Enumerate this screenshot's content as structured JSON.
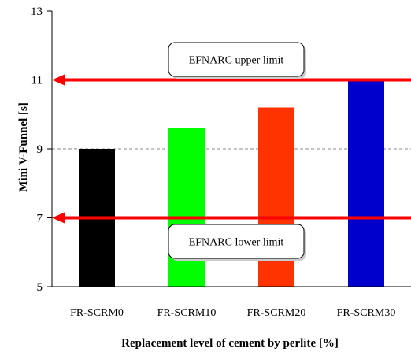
{
  "chart_data": {
    "type": "bar",
    "categories": [
      "FR-SCRM0",
      "FR-SCRM10",
      "FR-SCRM20",
      "FR-SCRM30"
    ],
    "values": [
      9.0,
      9.6,
      10.2,
      11.0
    ],
    "bar_colors": [
      "#000000",
      "#00ff00",
      "#ff3300",
      "#0000cc"
    ],
    "xlabel": "Replacement level of cement by perlite [%]",
    "ylabel": "Mini V-Funnel [s]",
    "ylim": [
      5,
      13
    ],
    "yticks": [
      5,
      7,
      9,
      11,
      13
    ],
    "ytick_labels": [
      "5",
      "7",
      "9",
      "11",
      "13"
    ],
    "reference_lines": [
      {
        "name": "EFNARC upper limit",
        "value": 11,
        "color": "#ff0000",
        "label": "EFNARC upper limit"
      },
      {
        "name": "EFNARC lower limit",
        "value": 7,
        "color": "#ff0000",
        "label": "EFNARC lower limit"
      }
    ],
    "gridline": {
      "value": 9,
      "style": "dashed",
      "color": "#888888"
    },
    "grid": false
  }
}
